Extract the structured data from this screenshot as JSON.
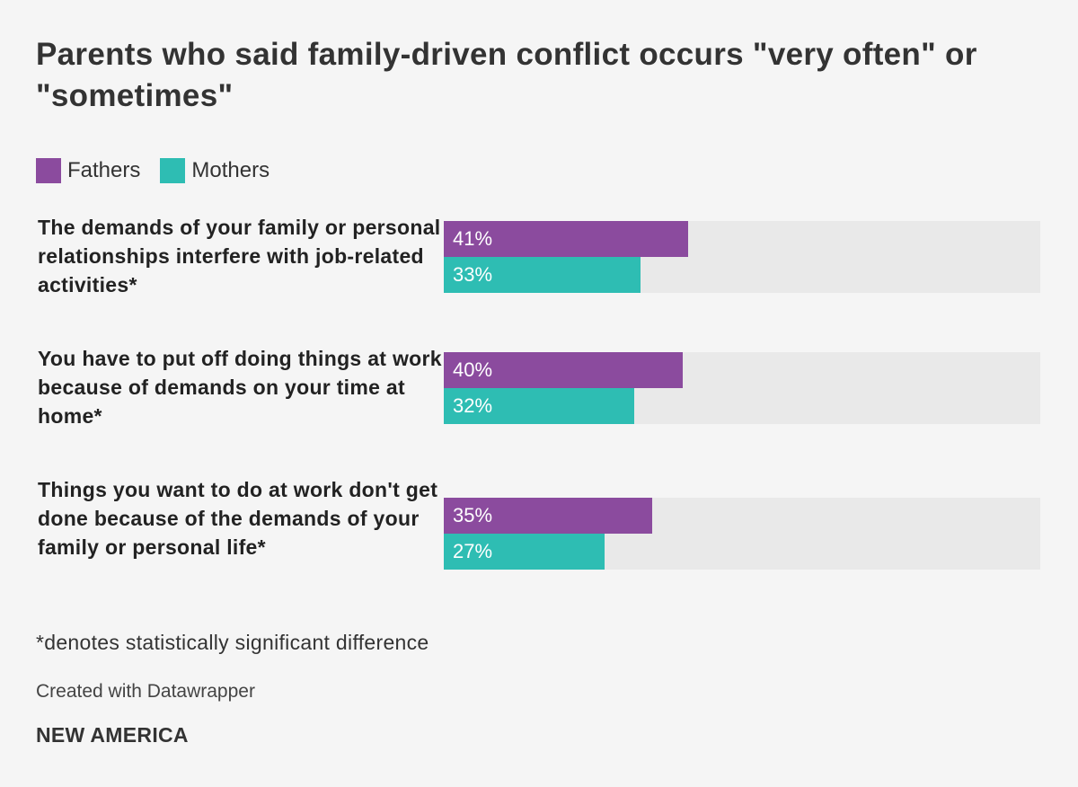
{
  "chart_data": {
    "type": "bar",
    "orientation": "horizontal",
    "title": "Parents who said family-driven conflict occurs \"very often\" or \"sometimes\"",
    "categories": [
      "The demands of your family or personal relationships interfere with job-related activities*",
      "You have to put off doing things at work because of demands on your time at home*",
      "Things you want to do at work don't get done because of the demands of your family or personal life*"
    ],
    "series": [
      {
        "name": "Fathers",
        "color": "#8b4b9e",
        "values": [
          41,
          40,
          35
        ],
        "labels": [
          "41%",
          "40%",
          "35%"
        ]
      },
      {
        "name": "Mothers",
        "color": "#2ebdb3",
        "values": [
          33,
          32,
          27
        ],
        "labels": [
          "33%",
          "32%",
          "27%"
        ]
      }
    ],
    "xlim": [
      0,
      100
    ],
    "unit": "%",
    "legend": "top-left",
    "grid": false
  },
  "footer": {
    "note": "*denotes statistically significant difference",
    "credit": "Created with Datawrapper",
    "brand": "NEW AMERICA"
  }
}
